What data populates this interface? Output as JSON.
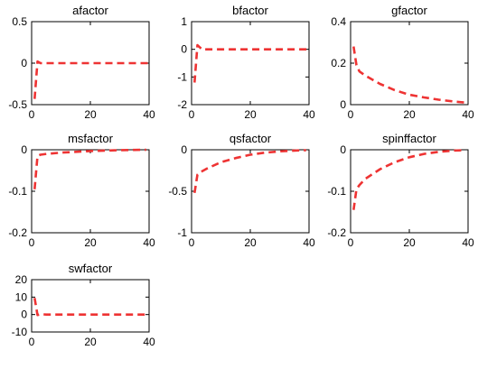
{
  "figure": {
    "line_color": "#ee3333",
    "axes_color": "#000000",
    "background": "#ffffff"
  },
  "chart_data": [
    {
      "type": "line",
      "title": "afactor",
      "xlim": [
        0,
        40
      ],
      "ylim": [
        -0.5,
        0.5
      ],
      "xticks": [
        "0",
        "20",
        "40"
      ],
      "yticks": [
        "-0.5",
        "0",
        "0.5"
      ],
      "ytick_values": [
        -0.5,
        0,
        0.5
      ],
      "series": [
        {
          "line_style": "dashed",
          "x": [
            1,
            2,
            3,
            5,
            10,
            20,
            30,
            40
          ],
          "y": [
            -0.43,
            0.02,
            0.0,
            0.0,
            0.0,
            0.0,
            0.0,
            0.0
          ]
        }
      ]
    },
    {
      "type": "line",
      "title": "bfactor",
      "xlim": [
        0,
        40
      ],
      "ylim": [
        -2,
        1
      ],
      "xticks": [
        "0",
        "20",
        "40"
      ],
      "yticks": [
        "-2",
        "-1",
        "0",
        "1"
      ],
      "ytick_values": [
        -2,
        -1,
        0,
        1
      ],
      "series": [
        {
          "line_style": "dashed",
          "x": [
            1,
            2,
            3,
            4,
            5,
            10,
            20,
            30,
            40
          ],
          "y": [
            -1.2,
            0.15,
            0.05,
            -0.02,
            0.0,
            0.0,
            0.0,
            0.0,
            0.0
          ]
        }
      ]
    },
    {
      "type": "line",
      "title": "gfactor",
      "xlim": [
        0,
        40
      ],
      "ylim": [
        0,
        0.4
      ],
      "xticks": [
        "0",
        "20",
        "40"
      ],
      "yticks": [
        "0",
        "0.2",
        "0.4"
      ],
      "ytick_values": [
        0,
        0.2,
        0.4
      ],
      "series": [
        {
          "line_style": "dashed",
          "x": [
            1,
            2,
            3,
            5,
            10,
            15,
            20,
            25,
            30,
            35,
            39
          ],
          "y": [
            0.28,
            0.19,
            0.16,
            0.14,
            0.1,
            0.07,
            0.048,
            0.035,
            0.024,
            0.015,
            0.01
          ]
        }
      ]
    },
    {
      "type": "line",
      "title": "msfactor",
      "xlim": [
        0,
        40
      ],
      "ylim": [
        -0.2,
        0
      ],
      "xticks": [
        "0",
        "20",
        "40"
      ],
      "yticks": [
        "-0.2",
        "-0.1",
        "0"
      ],
      "ytick_values": [
        -0.2,
        -0.1,
        0
      ],
      "series": [
        {
          "line_style": "dashed",
          "x": [
            1,
            2,
            3,
            5,
            10,
            15,
            20,
            25,
            30,
            35,
            39
          ],
          "y": [
            -0.095,
            -0.015,
            -0.012,
            -0.01,
            -0.007,
            -0.005,
            -0.003,
            -0.002,
            -0.001,
            -0.0005,
            0.0
          ]
        }
      ]
    },
    {
      "type": "line",
      "title": "qsfactor",
      "xlim": [
        0,
        40
      ],
      "ylim": [
        -1,
        0
      ],
      "xticks": [
        "0",
        "20",
        "40"
      ],
      "yticks": [
        "-1",
        "-0.5",
        "0"
      ],
      "ytick_values": [
        -1,
        -0.5,
        0
      ],
      "series": [
        {
          "line_style": "dashed",
          "x": [
            1,
            2,
            3,
            5,
            10,
            15,
            20,
            25,
            30,
            35,
            39
          ],
          "y": [
            -0.52,
            -0.3,
            -0.27,
            -0.23,
            -0.15,
            -0.1,
            -0.06,
            -0.035,
            -0.02,
            -0.01,
            -0.005
          ]
        }
      ]
    },
    {
      "type": "line",
      "title": "spinffactor",
      "xlim": [
        0,
        40
      ],
      "ylim": [
        -0.2,
        0
      ],
      "xticks": [
        "0",
        "20",
        "40"
      ],
      "yticks": [
        "-0.2",
        "-0.1",
        "0"
      ],
      "ytick_values": [
        -0.2,
        -0.1,
        0
      ],
      "series": [
        {
          "line_style": "dashed",
          "x": [
            1,
            2,
            3,
            5,
            10,
            15,
            20,
            25,
            30,
            35,
            39
          ],
          "y": [
            -0.145,
            -0.095,
            -0.085,
            -0.07,
            -0.047,
            -0.03,
            -0.018,
            -0.01,
            -0.005,
            -0.002,
            -0.001
          ]
        }
      ]
    },
    {
      "type": "line",
      "title": "swfactor",
      "xlim": [
        0,
        40
      ],
      "ylim": [
        -10,
        20
      ],
      "xticks": [
        "0",
        "20",
        "40"
      ],
      "yticks": [
        "-10",
        "0",
        "10",
        "20"
      ],
      "ytick_values": [
        -10,
        0,
        10,
        20
      ],
      "series": [
        {
          "line_style": "dashed",
          "x": [
            1,
            2,
            3,
            5,
            10,
            20,
            30,
            40
          ],
          "y": [
            9.5,
            -0.3,
            0.2,
            0.0,
            0.0,
            0.0,
            0.0,
            0.0
          ]
        }
      ]
    }
  ]
}
